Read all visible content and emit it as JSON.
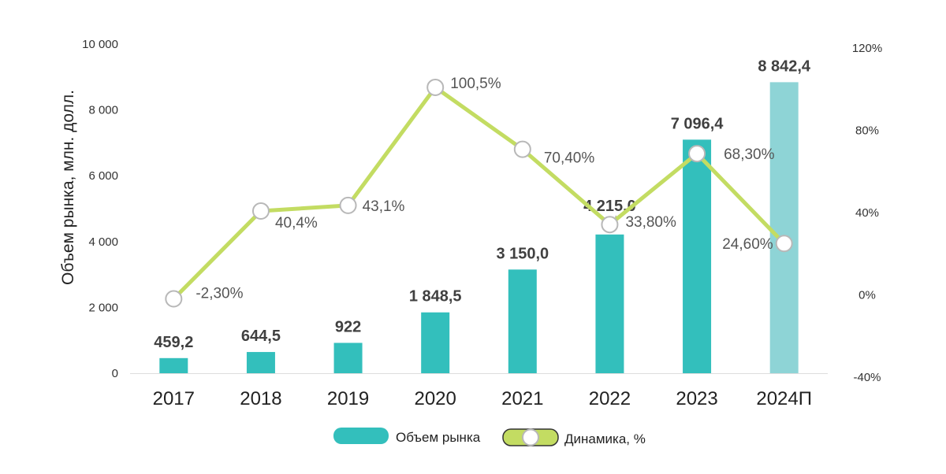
{
  "chart_data": {
    "type": "bar",
    "categories": [
      "2017",
      "2018",
      "2019",
      "2020",
      "2021",
      "2022",
      "2023",
      "2024П"
    ],
    "series": [
      {
        "name": "Объем рынка",
        "type": "bar",
        "axis": "left",
        "values": [
          459.2,
          644.5,
          922,
          1848.5,
          3150.0,
          4215.0,
          7096.4,
          8842.4
        ],
        "labels": [
          "459,2",
          "644,5",
          "922",
          "1 848,5",
          "3 150,0",
          "4 215,0",
          "7 096,4",
          "8 842,4"
        ],
        "color": "#33BFBC",
        "forecast_color": "#8ED4D6"
      },
      {
        "name": "Динамика, %",
        "type": "line",
        "axis": "right",
        "values": [
          -2.3,
          40.4,
          43.1,
          100.5,
          70.4,
          33.8,
          68.3,
          24.6
        ],
        "labels": [
          "-2,30%",
          "40,4%",
          "43,1%",
          "100,5%",
          "70,40%",
          "33,80%",
          "68,30%",
          "24,60%"
        ],
        "color": "#C3DC62"
      }
    ],
    "ylabel": "Объем рынка, млн. долл.",
    "ylim": [
      0,
      10000
    ],
    "yticks": [
      0,
      2000,
      4000,
      6000,
      8000,
      10000
    ],
    "ytick_labels": [
      "0",
      "2 000",
      "4 000",
      "6 000",
      "8 000",
      "10 000"
    ],
    "y2lim": [
      -40,
      120
    ],
    "y2ticks": [
      -40,
      0,
      40,
      80,
      120
    ],
    "y2tick_labels": [
      "-40%",
      "0%",
      "40%",
      "80%",
      "120%"
    ],
    "grid": false,
    "legend_position": "bottom"
  }
}
